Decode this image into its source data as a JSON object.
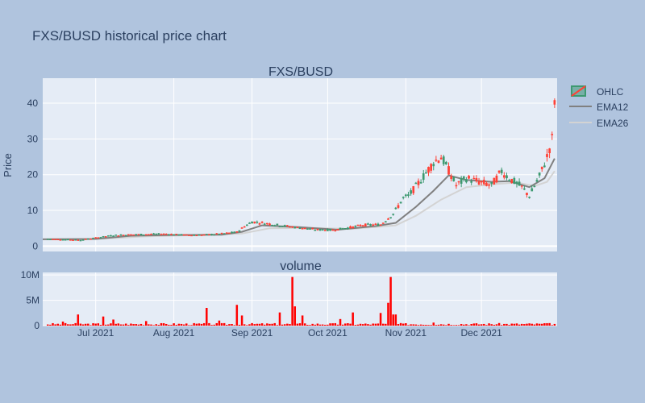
{
  "page": {
    "title": "FXS/BUSD historical price chart",
    "background": "#b0c4de",
    "plot_background": "#e5ecf6",
    "text_color": "#2a3f5f"
  },
  "chart_data": [
    {
      "type": "candlestick",
      "title": "FXS/BUSD",
      "xlabel": "",
      "ylabel": "Price",
      "xlim": [
        "2021-06-10",
        "2021-12-31"
      ],
      "ylim": [
        -1.5,
        47
      ],
      "y_ticks": [
        0,
        10,
        20,
        30,
        40
      ],
      "x_ticks": [
        {
          "date": "2021-07-01",
          "label": "Jul 2021"
        },
        {
          "date": "2021-08-01",
          "label": "Aug 2021"
        },
        {
          "date": "2021-09-01",
          "label": "Sep 2021"
        },
        {
          "date": "2021-10-01",
          "label": "Oct 2021"
        },
        {
          "date": "2021-11-01",
          "label": "Nov 2021"
        },
        {
          "date": "2021-12-01",
          "label": "Dec 2021"
        }
      ],
      "grid": true,
      "legend": {
        "placement": "top-right",
        "entries": [
          {
            "name": "OHLC",
            "up_color": "#3d9970",
            "down_color": "#ff4136"
          },
          {
            "name": "EMA12",
            "color": "#808080"
          },
          {
            "name": "EMA26",
            "color": "#d3d3d3"
          }
        ]
      },
      "trend_points": [
        [
          "2021-06-12",
          2.0
        ],
        [
          "2021-06-20",
          1.8
        ],
        [
          "2021-06-25",
          1.7
        ],
        [
          "2021-07-01",
          2.3
        ],
        [
          "2021-07-08",
          3.0
        ],
        [
          "2021-07-15",
          3.2
        ],
        [
          "2021-07-22",
          3.3
        ],
        [
          "2021-07-29",
          3.4
        ],
        [
          "2021-08-05",
          3.1
        ],
        [
          "2021-08-12",
          3.1
        ],
        [
          "2021-08-19",
          3.4
        ],
        [
          "2021-08-26",
          3.9
        ],
        [
          "2021-08-29",
          5.5
        ],
        [
          "2021-09-01",
          6.8
        ],
        [
          "2021-09-05",
          6.5
        ],
        [
          "2021-09-12",
          5.8
        ],
        [
          "2021-09-19",
          5.2
        ],
        [
          "2021-09-26",
          4.6
        ],
        [
          "2021-10-03",
          4.5
        ],
        [
          "2021-10-10",
          5.2
        ],
        [
          "2021-10-15",
          5.9
        ],
        [
          "2021-10-22",
          6.0
        ],
        [
          "2021-10-27",
          9.0
        ],
        [
          "2021-10-31",
          13.5
        ],
        [
          "2021-11-02",
          14.0
        ],
        [
          "2021-11-07",
          18.5
        ],
        [
          "2021-11-12",
          23.5
        ],
        [
          "2021-11-15",
          25.0
        ],
        [
          "2021-11-17",
          22.5
        ],
        [
          "2021-11-21",
          17.0
        ],
        [
          "2021-11-25",
          19.0
        ],
        [
          "2021-11-30",
          18.0
        ],
        [
          "2021-12-05",
          17.0
        ],
        [
          "2021-12-09",
          21.0
        ],
        [
          "2021-12-12",
          19.0
        ],
        [
          "2021-12-17",
          16.5
        ],
        [
          "2021-12-20",
          14.0
        ],
        [
          "2021-12-24",
          19.5
        ],
        [
          "2021-12-27",
          25.0
        ],
        [
          "2021-12-29",
          30.0
        ],
        [
          "2021-12-30",
          41.0
        ]
      ],
      "ema12_points": [
        [
          "2021-06-10",
          1.9
        ],
        [
          "2021-07-01",
          2.0
        ],
        [
          "2021-07-15",
          2.9
        ],
        [
          "2021-08-01",
          3.1
        ],
        [
          "2021-08-20",
          3.2
        ],
        [
          "2021-08-28",
          4.0
        ],
        [
          "2021-09-05",
          5.8
        ],
        [
          "2021-09-20",
          5.3
        ],
        [
          "2021-10-05",
          4.6
        ],
        [
          "2021-10-20",
          5.6
        ],
        [
          "2021-10-28",
          6.5
        ],
        [
          "2021-11-05",
          11.0
        ],
        [
          "2021-11-12",
          15.5
        ],
        [
          "2021-11-18",
          19.8
        ],
        [
          "2021-11-25",
          18.5
        ],
        [
          "2021-12-05",
          18.0
        ],
        [
          "2021-12-12",
          18.2
        ],
        [
          "2021-12-20",
          16.5
        ],
        [
          "2021-12-26",
          19.0
        ],
        [
          "2021-12-30",
          24.5
        ]
      ],
      "ema26_points": [
        [
          "2021-06-10",
          1.9
        ],
        [
          "2021-07-01",
          2.0
        ],
        [
          "2021-07-20",
          2.7
        ],
        [
          "2021-08-10",
          3.1
        ],
        [
          "2021-08-28",
          3.5
        ],
        [
          "2021-09-08",
          5.0
        ],
        [
          "2021-09-25",
          5.1
        ],
        [
          "2021-10-10",
          4.8
        ],
        [
          "2021-10-28",
          5.8
        ],
        [
          "2021-11-05",
          8.5
        ],
        [
          "2021-11-15",
          13.0
        ],
        [
          "2021-11-25",
          16.5
        ],
        [
          "2021-12-05",
          17.3
        ],
        [
          "2021-12-15",
          17.8
        ],
        [
          "2021-12-22",
          16.8
        ],
        [
          "2021-12-27",
          18.0
        ],
        [
          "2021-12-30",
          21.0
        ]
      ]
    },
    {
      "type": "bar",
      "title": "volume",
      "ylim": [
        0,
        10500000
      ],
      "y_ticks": [
        {
          "value": 0,
          "label": "0"
        },
        {
          "value": 5000000,
          "label": "5M"
        },
        {
          "value": 10000000,
          "label": "10M"
        }
      ],
      "color": "#ff0000",
      "base_volume": 300000,
      "spikes": [
        [
          "2021-06-18",
          800000
        ],
        [
          "2021-06-24",
          2200000
        ],
        [
          "2021-07-04",
          1800000
        ],
        [
          "2021-07-08",
          1200000
        ],
        [
          "2021-07-21",
          900000
        ],
        [
          "2021-08-14",
          3500000
        ],
        [
          "2021-08-19",
          1000000
        ],
        [
          "2021-08-26",
          4100000
        ],
        [
          "2021-08-28",
          2000000
        ],
        [
          "2021-09-12",
          2600000
        ],
        [
          "2021-09-17",
          9600000
        ],
        [
          "2021-09-18",
          3800000
        ],
        [
          "2021-09-21",
          2000000
        ],
        [
          "2021-10-06",
          1300000
        ],
        [
          "2021-10-11",
          2600000
        ],
        [
          "2021-10-22",
          2500000
        ],
        [
          "2021-10-25",
          4500000
        ],
        [
          "2021-10-26",
          9600000
        ],
        [
          "2021-10-27",
          2200000
        ],
        [
          "2021-10-28",
          2200000
        ],
        [
          "2021-11-12",
          600000
        ],
        [
          "2021-12-28",
          500000
        ]
      ]
    }
  ]
}
